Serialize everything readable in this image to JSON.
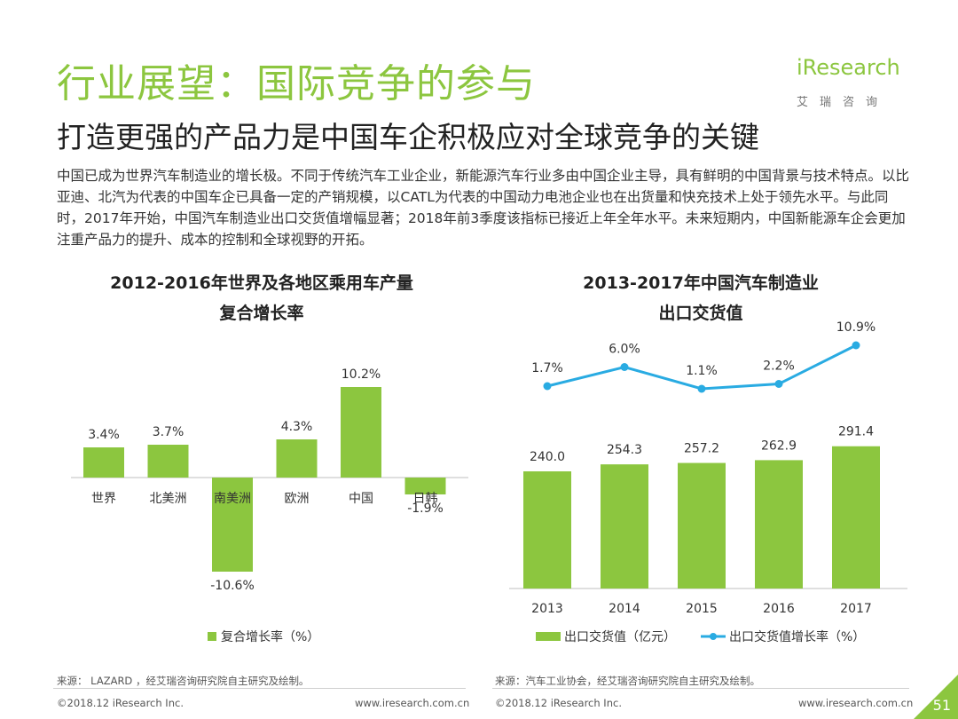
{
  "header": {
    "title": "行业展望：国际竞争的参与",
    "subtitle": "打造更强的产品力是中国车企积极应对全球竞争的关键",
    "logo_text": "iResearch",
    "logo_sub": "艾瑞咨询"
  },
  "body_text": "中国已成为世界汽车制造业的增长极。不同于传统汽车工业企业，新能源汽车行业多由中国企业主导，具有鲜明的中国背景与技术特点。以比亚迪、北汽为代表的中国车企已具备一定的产销规模，以CATL为代表的中国动力电池企业也在出货量和快充技术上处于领先水平。与此同时，2017年开始，中国汽车制造业出口交货值增幅显著；2018年前3季度该指标已接近上年全年水平。未来短期内，中国新能源车企会更加注重产品力的提升、成本的控制和全球视野的开拓。",
  "colors": {
    "accent_green": "#8cc63f",
    "line_blue": "#29abe2",
    "text_dark": "#222222"
  },
  "chart_data": [
    {
      "type": "bar",
      "title": "2012-2016年世界及各地区乘用车产量复合增长率",
      "title_lines": [
        "2012-2016年世界及各地区乘用车产量",
        "复合增长率"
      ],
      "categories": [
        "世界",
        "北美洲",
        "南美洲",
        "欧洲",
        "中国",
        "日韩"
      ],
      "series": [
        {
          "name": "复合增长率（%）",
          "values": [
            3.4,
            3.7,
            -10.6,
            4.3,
            10.2,
            -1.9
          ]
        }
      ],
      "data_labels": [
        "3.4%",
        "3.7%",
        "-10.6%",
        "4.3%",
        "10.2%",
        "-1.9%"
      ],
      "legend": "bottom",
      "source": "来源： LAZARD ，经艾瑞咨询研究院自主研究及绘制。"
    },
    {
      "type": "bar",
      "title": "2013-2017年中国汽车制造业出口交货值",
      "title_lines": [
        "2013-2017年中国汽车制造业",
        "出口交货值"
      ],
      "categories": [
        "2013",
        "2014",
        "2015",
        "2016",
        "2017"
      ],
      "series": [
        {
          "name": "出口交货值（亿元）",
          "type": "bar",
          "values": [
            240.0,
            254.3,
            257.2,
            262.9,
            291.4
          ],
          "labels": [
            "240.0",
            "254.3",
            "257.2",
            "262.9",
            "291.4"
          ]
        },
        {
          "name": "出口交货值增长率（%）",
          "type": "line",
          "values": [
            1.7,
            6.0,
            1.1,
            2.2,
            10.9
          ],
          "labels": [
            "1.7%",
            "6.0%",
            "1.1%",
            "2.2%",
            "10.9%"
          ]
        }
      ],
      "legend": "bottom",
      "source": "来源：汽车工业协会，经艾瑞咨询研究院自主研究及绘制。"
    }
  ],
  "footer": {
    "left_copyright_1": "©2018.12 iResearch Inc.",
    "left_url_1": "www.iresearch.com.cn",
    "left_copyright_2": "©2018.12 iResearch Inc.",
    "left_url_2": "www.iresearch.com.cn",
    "page_number": "51"
  }
}
